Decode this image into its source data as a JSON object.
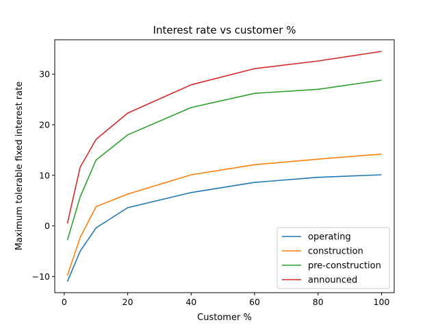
{
  "chart_data": {
    "type": "line",
    "title": "Interest rate vs customer %",
    "xlabel": "Customer %",
    "ylabel": "Maximum tolerable fixed interest rate",
    "x": [
      1,
      5,
      10,
      20,
      40,
      60,
      80,
      100
    ],
    "xlim": [
      -3,
      104
    ],
    "ylim": [
      -13.2,
      36.8
    ],
    "xticks": [
      0,
      20,
      40,
      60,
      80,
      100
    ],
    "yticks": [
      -10,
      0,
      10,
      20,
      30
    ],
    "grid": false,
    "legend_position": "lower-right",
    "series": [
      {
        "name": "operating",
        "color": "#1f77b4",
        "values": [
          -11.0,
          -5.0,
          -0.4,
          3.6,
          6.6,
          8.6,
          9.6,
          10.1
        ]
      },
      {
        "name": "construction",
        "color": "#ff7f0e",
        "values": [
          -9.8,
          -2.3,
          3.8,
          6.3,
          10.1,
          12.1,
          13.2,
          14.2
        ]
      },
      {
        "name": "pre-construction",
        "color": "#2ca02c",
        "values": [
          -2.8,
          5.7,
          13.0,
          18.0,
          23.4,
          26.2,
          27.0,
          28.8
        ]
      },
      {
        "name": "announced",
        "color": "#d62728",
        "values": [
          0.5,
          11.6,
          17.1,
          22.3,
          27.9,
          31.1,
          32.6,
          34.5
        ]
      }
    ]
  }
}
